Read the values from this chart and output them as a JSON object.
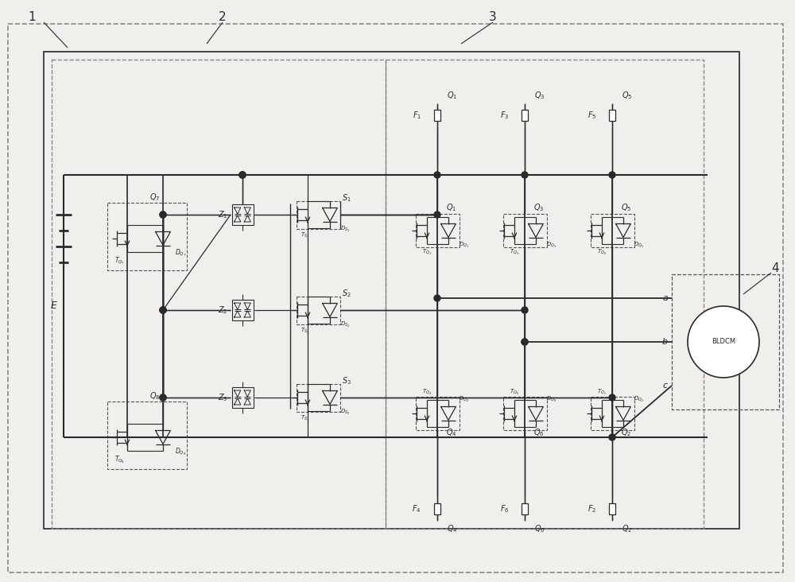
{
  "fig_width": 10.0,
  "fig_height": 7.32,
  "bg_color": "#f0efeb",
  "lc": "#2a2a2a",
  "dc": "#555555",
  "labels": {
    "E": "E",
    "BLDCM": "BLDCM",
    "a": "a",
    "b": "b",
    "c": "c",
    "1": "1",
    "2": "2",
    "3": "3",
    "4": "4"
  }
}
